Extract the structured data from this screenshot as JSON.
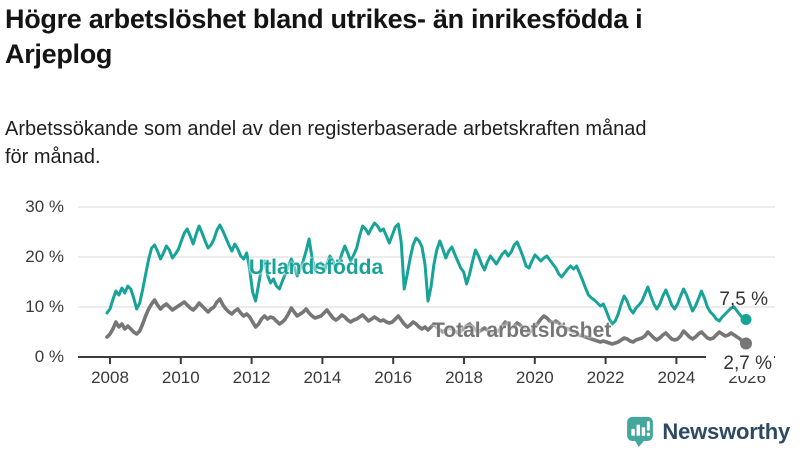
{
  "header": {
    "title_line1": "Högre arbetslöshet bland utrikes- än inrikesfödda i",
    "title_line2": "Arjeplog",
    "subtitle_line1": "Arbetssökande som andel av den registerbaserade arbetskraften månad",
    "subtitle_line2": "för månad."
  },
  "chart_data": {
    "type": "line",
    "title": "Högre arbetslöshet bland utrikes- än inrikesfödda i Arjeplog",
    "subtitle": "Arbetssökande som andel av den registerbaserade arbetskraften månad för månad.",
    "x_unit": "month",
    "x_range": [
      "2008-01",
      "2025-12"
    ],
    "x_ticks": [
      "2008",
      "2010",
      "2012",
      "2014",
      "2016",
      "2018",
      "2020",
      "2022",
      "2024",
      "2026"
    ],
    "y_ticks": [
      "30 %",
      "20 %",
      "10 %",
      "0 %"
    ],
    "ylim": [
      0,
      32
    ],
    "grid": true,
    "legend_position": "inline-labels",
    "series": [
      {
        "name": "Utlandsfödda",
        "color": "#18A398",
        "end_label": "7,5 %",
        "end_value": 7.5,
        "values": [
          8.8,
          9.6,
          11.5,
          13.2,
          12.4,
          13.8,
          12.8,
          14.2,
          13.6,
          11.8,
          9.6,
          10.8,
          13.5,
          16.5,
          19.5,
          21.8,
          22.4,
          21.2,
          19.6,
          20.8,
          22.2,
          21.4,
          19.8,
          20.6,
          21.5,
          23.2,
          24.8,
          25.6,
          24.2,
          22.6,
          24.6,
          26.2,
          24.8,
          23.2,
          21.8,
          22.4,
          23.6,
          25.4,
          26.4,
          25.2,
          23.8,
          22.4,
          21.2,
          22.6,
          21.6,
          20.2,
          19.6,
          20.8,
          17.5,
          13.0,
          11.2,
          14.5,
          17.8,
          19.2,
          16.4,
          14.8,
          15.6,
          14.2,
          13.6,
          15.2,
          16.6,
          18.2,
          19.6,
          18.2,
          16.2,
          17.6,
          19.2,
          21.2,
          23.6,
          19.8,
          17.4,
          18.4,
          18.8,
          17.2,
          18.6,
          20.2,
          19.2,
          17.8,
          18.8,
          20.6,
          22.2,
          20.8,
          19.2,
          20.4,
          21.8,
          24.2,
          26.2,
          25.6,
          24.6,
          25.8,
          26.8,
          26.2,
          25.2,
          25.6,
          24.2,
          22.8,
          24.4,
          26.0,
          26.6,
          23.0,
          13.6,
          16.5,
          19.8,
          22.4,
          23.8,
          23.2,
          22.0,
          18.5,
          11.2,
          14.0,
          18.5,
          21.5,
          23.2,
          21.6,
          19.8,
          21.2,
          22.0,
          20.6,
          19.2,
          17.8,
          17.0,
          14.6,
          16.6,
          19.2,
          21.4,
          20.2,
          18.6,
          17.4,
          19.0,
          20.2,
          19.4,
          18.6,
          19.6,
          20.6,
          21.2,
          20.2,
          21.0,
          22.4,
          23.0,
          21.6,
          20.0,
          18.2,
          17.8,
          19.2,
          20.4,
          19.8,
          19.2,
          19.8,
          20.2,
          19.4,
          18.6,
          17.8,
          16.6,
          16.0,
          16.8,
          17.6,
          18.2,
          17.6,
          18.2,
          16.8,
          15.4,
          13.8,
          12.4,
          11.8,
          11.4,
          10.8,
          10.2,
          10.6,
          9.2,
          7.6,
          6.6,
          7.2,
          8.6,
          10.6,
          12.2,
          11.2,
          9.6,
          8.8,
          9.8,
          10.4,
          11.2,
          12.6,
          14.0,
          12.2,
          10.6,
          9.6,
          10.6,
          12.2,
          13.4,
          12.0,
          10.4,
          9.6,
          10.6,
          12.2,
          13.6,
          12.4,
          10.8,
          9.2,
          10.2,
          11.6,
          13.2,
          11.8,
          10.0,
          9.0,
          8.4,
          7.6,
          7.2,
          8.0,
          8.6,
          9.2,
          9.8,
          10.0,
          9.2,
          8.4,
          7.8,
          7.5
        ]
      },
      {
        "name": "Total arbetslöshet",
        "color": "#767676",
        "end_label": "2,7 %",
        "end_value": 2.7,
        "values": [
          4.0,
          4.6,
          5.6,
          7.0,
          6.0,
          6.6,
          5.6,
          6.2,
          5.6,
          5.0,
          4.6,
          5.2,
          6.6,
          8.2,
          9.6,
          10.6,
          11.4,
          10.4,
          9.6,
          10.2,
          10.6,
          10.0,
          9.4,
          9.8,
          10.2,
          10.6,
          11.0,
          10.4,
          9.8,
          9.4,
          10.0,
          10.8,
          10.2,
          9.6,
          9.0,
          9.6,
          10.0,
          11.0,
          11.6,
          10.4,
          9.6,
          9.0,
          8.6,
          9.2,
          9.6,
          8.8,
          8.2,
          8.6,
          8.0,
          7.0,
          6.0,
          6.6,
          7.6,
          8.2,
          7.6,
          8.0,
          7.8,
          7.2,
          6.6,
          7.0,
          7.6,
          8.6,
          9.8,
          9.0,
          8.2,
          8.6,
          9.0,
          9.6,
          8.8,
          8.2,
          7.8,
          8.0,
          8.2,
          8.8,
          9.4,
          8.6,
          7.8,
          7.4,
          7.8,
          8.4,
          8.0,
          7.4,
          7.0,
          7.4,
          7.6,
          8.0,
          8.4,
          7.8,
          7.2,
          7.6,
          8.0,
          7.6,
          7.2,
          7.4,
          7.0,
          6.8,
          7.0,
          7.6,
          8.2,
          7.4,
          6.6,
          6.0,
          6.4,
          7.0,
          6.6,
          6.0,
          5.6,
          6.0,
          5.4,
          6.0,
          6.6,
          6.0,
          5.4,
          5.0,
          5.4,
          6.0,
          5.6,
          5.2,
          4.8,
          5.2,
          5.6,
          6.2,
          6.6,
          6.0,
          5.4,
          5.0,
          5.4,
          5.8,
          5.4,
          5.0,
          4.6,
          5.0,
          5.4,
          6.2,
          7.0,
          6.4,
          5.8,
          6.2,
          6.8,
          6.4,
          5.8,
          5.2,
          4.8,
          5.4,
          6.0,
          6.8,
          7.6,
          8.2,
          7.8,
          7.2,
          6.8,
          7.2,
          6.8,
          6.2,
          5.8,
          5.6,
          5.4,
          5.0,
          4.6,
          4.4,
          4.2,
          4.0,
          3.8,
          3.6,
          3.4,
          3.2,
          3.0,
          3.2,
          3.0,
          2.8,
          2.6,
          2.8,
          3.0,
          3.4,
          3.8,
          3.6,
          3.2,
          3.0,
          3.4,
          3.6,
          3.8,
          4.2,
          5.0,
          4.4,
          3.8,
          3.4,
          3.8,
          4.4,
          4.8,
          4.2,
          3.6,
          3.4,
          3.6,
          4.2,
          5.2,
          4.6,
          4.0,
          3.6,
          4.0,
          4.6,
          5.0,
          4.4,
          3.8,
          3.6,
          3.8,
          4.4,
          5.0,
          4.6,
          4.2,
          4.4,
          4.8,
          4.4,
          4.0,
          3.6,
          3.0,
          2.7
        ]
      }
    ],
    "colors": {
      "grid": "#e0e0e0",
      "axis": "#3b3b3b",
      "tick_text": "#3a3a3a",
      "end_label_text": "#333333"
    }
  },
  "branding": {
    "logo_text": "Newsworthy",
    "logo_icon": "newsworthy-speech-bubble-bar-chart-icon",
    "logo_icon_color": "#45A69E",
    "logo_text_color": "#2D4A62"
  }
}
